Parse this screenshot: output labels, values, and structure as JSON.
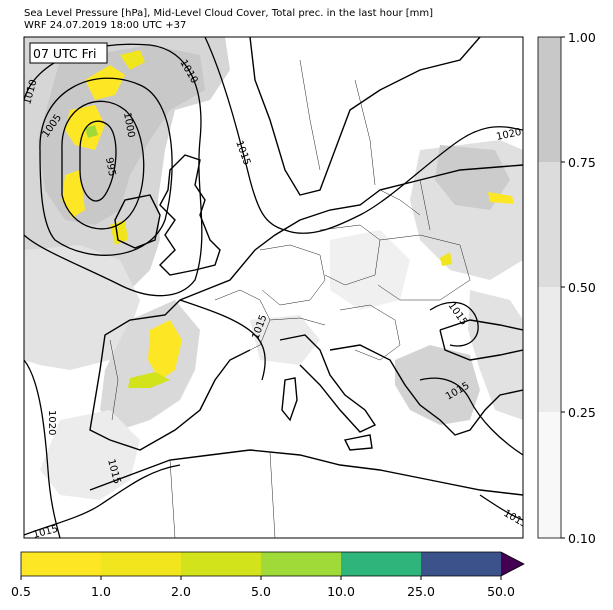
{
  "header": {
    "title_line1": "Sea Level Pressure [hPa], Mid-Level Cloud Cover, Total prec. in the last hour [mm]",
    "title_line2": "WRF 24.07.2019 18:00 UTC +37"
  },
  "map": {
    "time_label": "07 UTC Fri",
    "isobar_labels": [
      "1010",
      "1005",
      "1000",
      "995",
      "1010",
      "1015",
      "1020",
      "1015",
      "1015",
      "1015",
      "1020",
      "1015",
      "1015",
      "1015"
    ],
    "colors": {
      "land_bg": "#ffffff",
      "coast": "#000000",
      "border": "#222222",
      "cloud_light": "#f3f3f3",
      "cloud_mid": "#e2e2e2",
      "cloud_dark": "#c9c9c9",
      "precip_low": "#fde725",
      "precip_mid": "#d2e21b",
      "precip_high": "#a0da39"
    }
  },
  "cloud_colorbar": {
    "ticks": [
      "1.00",
      "0.75",
      "0.50",
      "0.25",
      "0.10"
    ],
    "colors": [
      "#c8c8c8",
      "#dcdcdc",
      "#ebebeb",
      "#f8f8f8"
    ]
  },
  "precip_colorbar": {
    "ticks": [
      "0.5",
      "1.0",
      "2.0",
      "5.0",
      "10.0",
      "25.0",
      "50.0"
    ],
    "colors": [
      "#fde725",
      "#f1e51d",
      "#d2e21b",
      "#a0da39",
      "#2fb47c",
      "#3b528b",
      "#440154"
    ]
  }
}
